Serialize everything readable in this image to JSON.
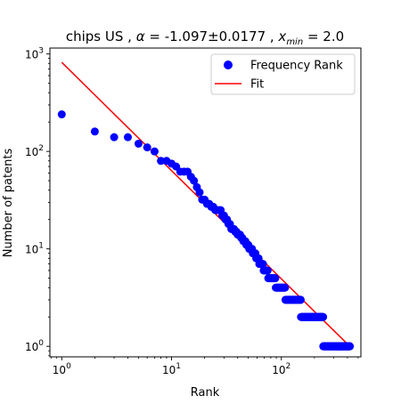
{
  "chart_data": {
    "type": "scatter",
    "title_prefix": "chips US , ",
    "title_alpha_symbol": "α",
    "title_alpha_value": " = -1.097±0.0177 , ",
    "title_xmin_symbol": "x",
    "title_xmin_sub": "min",
    "title_xmin_value": " = 2.0",
    "xlabel": "Rank",
    "ylabel": "Number of patents",
    "xscale": "log",
    "yscale": "log",
    "xlim": [
      0.78,
      530
    ],
    "ylim": [
      0.78,
      1150
    ],
    "x_ticks": [
      {
        "value": 1,
        "base": "10",
        "exp": "0"
      },
      {
        "value": 10,
        "base": "10",
        "exp": "1"
      },
      {
        "value": 100,
        "base": "10",
        "exp": "2"
      }
    ],
    "y_ticks": [
      {
        "value": 1,
        "base": "10",
        "exp": "0"
      },
      {
        "value": 10,
        "base": "10",
        "exp": "1"
      },
      {
        "value": 100,
        "base": "10",
        "exp": "2"
      },
      {
        "value": 1000,
        "base": "10",
        "exp": "3"
      }
    ],
    "legend_placement": "top-right",
    "legend_entries": [
      "Frequency Rank",
      "Fit"
    ],
    "colors": {
      "points": "#0000ff",
      "fit": "#ff0000"
    },
    "series": [
      {
        "name": "Frequency Rank",
        "kind": "scatter",
        "groups": [
          {
            "y": 240,
            "ranks": [
              1,
              1
            ]
          },
          {
            "y": 160,
            "ranks": [
              2,
              2
            ]
          },
          {
            "y": 140,
            "ranks": [
              3,
              4
            ]
          },
          {
            "y": 120,
            "ranks": [
              5,
              5
            ]
          },
          {
            "y": 110,
            "ranks": [
              6,
              6
            ]
          },
          {
            "y": 100,
            "ranks": [
              7,
              7
            ]
          },
          {
            "y": 80,
            "ranks": [
              8,
              9
            ]
          },
          {
            "y": 75,
            "ranks": [
              10,
              10
            ]
          },
          {
            "y": 70,
            "ranks": [
              11,
              11
            ]
          },
          {
            "y": 62,
            "ranks": [
              12,
              14
            ]
          },
          {
            "y": 55,
            "ranks": [
              15,
              15
            ]
          },
          {
            "y": 50,
            "ranks": [
              16,
              16
            ]
          },
          {
            "y": 43,
            "ranks": [
              17,
              17
            ]
          },
          {
            "y": 38,
            "ranks": [
              18,
              18
            ]
          },
          {
            "y": 32,
            "ranks": [
              19,
              20
            ]
          },
          {
            "y": 29,
            "ranks": [
              21,
              22
            ]
          },
          {
            "y": 27,
            "ranks": [
              23,
              24
            ]
          },
          {
            "y": 25,
            "ranks": [
              25,
              28
            ]
          },
          {
            "y": 22,
            "ranks": [
              29,
              30
            ]
          },
          {
            "y": 20,
            "ranks": [
              31,
              32
            ]
          },
          {
            "y": 18,
            "ranks": [
              33,
              34
            ]
          },
          {
            "y": 16,
            "ranks": [
              35,
              37
            ]
          },
          {
            "y": 15,
            "ranks": [
              38,
              39
            ]
          },
          {
            "y": 14,
            "ranks": [
              40,
              42
            ]
          },
          {
            "y": 13,
            "ranks": [
              43,
              44
            ]
          },
          {
            "y": 12,
            "ranks": [
              45,
              47
            ]
          },
          {
            "y": 11,
            "ranks": [
              48,
              50
            ]
          },
          {
            "y": 10,
            "ranks": [
              51,
              54
            ]
          },
          {
            "y": 9,
            "ranks": [
              55,
              58
            ]
          },
          {
            "y": 8,
            "ranks": [
              59,
              62
            ]
          },
          {
            "y": 7,
            "ranks": [
              63,
              68
            ]
          },
          {
            "y": 6,
            "ranks": [
              69,
              75
            ]
          },
          {
            "y": 5,
            "ranks": [
              76,
              88
            ]
          },
          {
            "y": 4,
            "ranks": [
              89,
              108
            ]
          },
          {
            "y": 3,
            "ranks": [
              109,
              150
            ]
          },
          {
            "y": 2,
            "ranks": [
              151,
              240
            ]
          },
          {
            "y": 1,
            "ranks": [
              241,
              420
            ]
          }
        ]
      },
      {
        "name": "Fit",
        "kind": "line",
        "x": [
          1,
          420
        ],
        "y": [
          820,
          1.0
        ]
      }
    ]
  }
}
